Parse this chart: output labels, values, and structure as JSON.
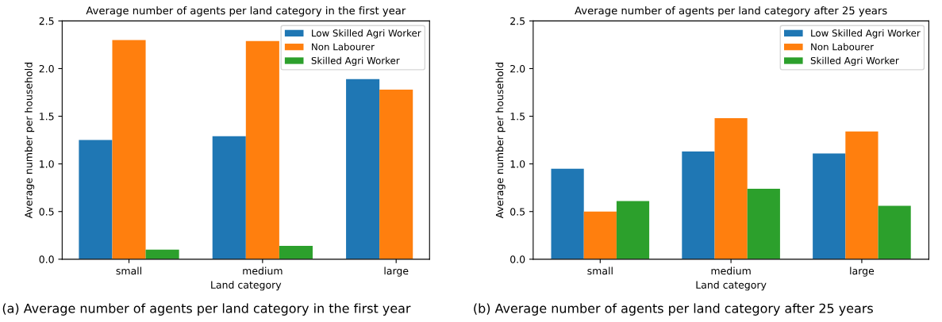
{
  "chart_data": [
    {
      "type": "bar",
      "title": "Average number of agents per land category in the first year",
      "xlabel": "Land category",
      "ylabel": "Average number per household",
      "categories": [
        "small",
        "medium",
        "large"
      ],
      "series": [
        {
          "name": "Low Skilled Agri Worker",
          "color": "#1f77b4",
          "values": [
            1.25,
            1.29,
            1.89
          ]
        },
        {
          "name": "Non Labourer",
          "color": "#ff7f0e",
          "values": [
            2.3,
            2.29,
            1.78
          ]
        },
        {
          "name": "Skilled Agri Worker",
          "color": "#2ca02c",
          "values": [
            0.1,
            0.14,
            null
          ]
        }
      ],
      "ylim": [
        0,
        2.5
      ],
      "yticks": [
        {
          "value": 0,
          "label": "0.0"
        },
        0.5,
        {
          "value": 1,
          "label": "1.0"
        },
        1.5,
        {
          "value": 2,
          "label": "2.0"
        },
        2.5
      ],
      "grid": false,
      "legend": "top right",
      "annotations": [
        "(a) Average number of agents per land category in the first year"
      ]
    },
    {
      "type": "bar",
      "title": "Average number of agents per land category after 25 years",
      "xlabel": "Land category",
      "ylabel": "Average number per household",
      "categories": [
        "small",
        "medium",
        "large"
      ],
      "series": [
        {
          "name": "Low Skilled Agri Worker",
          "color": "#1f77b4",
          "values": [
            0.95,
            1.13,
            1.11
          ]
        },
        {
          "name": "Non Labourer",
          "color": "#ff7f0e",
          "values": [
            0.5,
            1.48,
            1.34
          ]
        },
        {
          "name": "Skilled Agri Worker",
          "color": "#2ca02c",
          "values": [
            0.61,
            0.74,
            0.56
          ]
        }
      ],
      "ylim": [
        0,
        2.5
      ],
      "yticks": [
        {
          "value": 0,
          "label": "0.0"
        },
        0.5,
        {
          "value": 1,
          "label": "1.0"
        },
        1.5,
        {
          "value": 2,
          "label": "2.0"
        },
        2.5
      ],
      "grid": false,
      "legend": "top right",
      "annotations": [
        "(b) Average number of agents per land category after 25 years"
      ]
    }
  ]
}
